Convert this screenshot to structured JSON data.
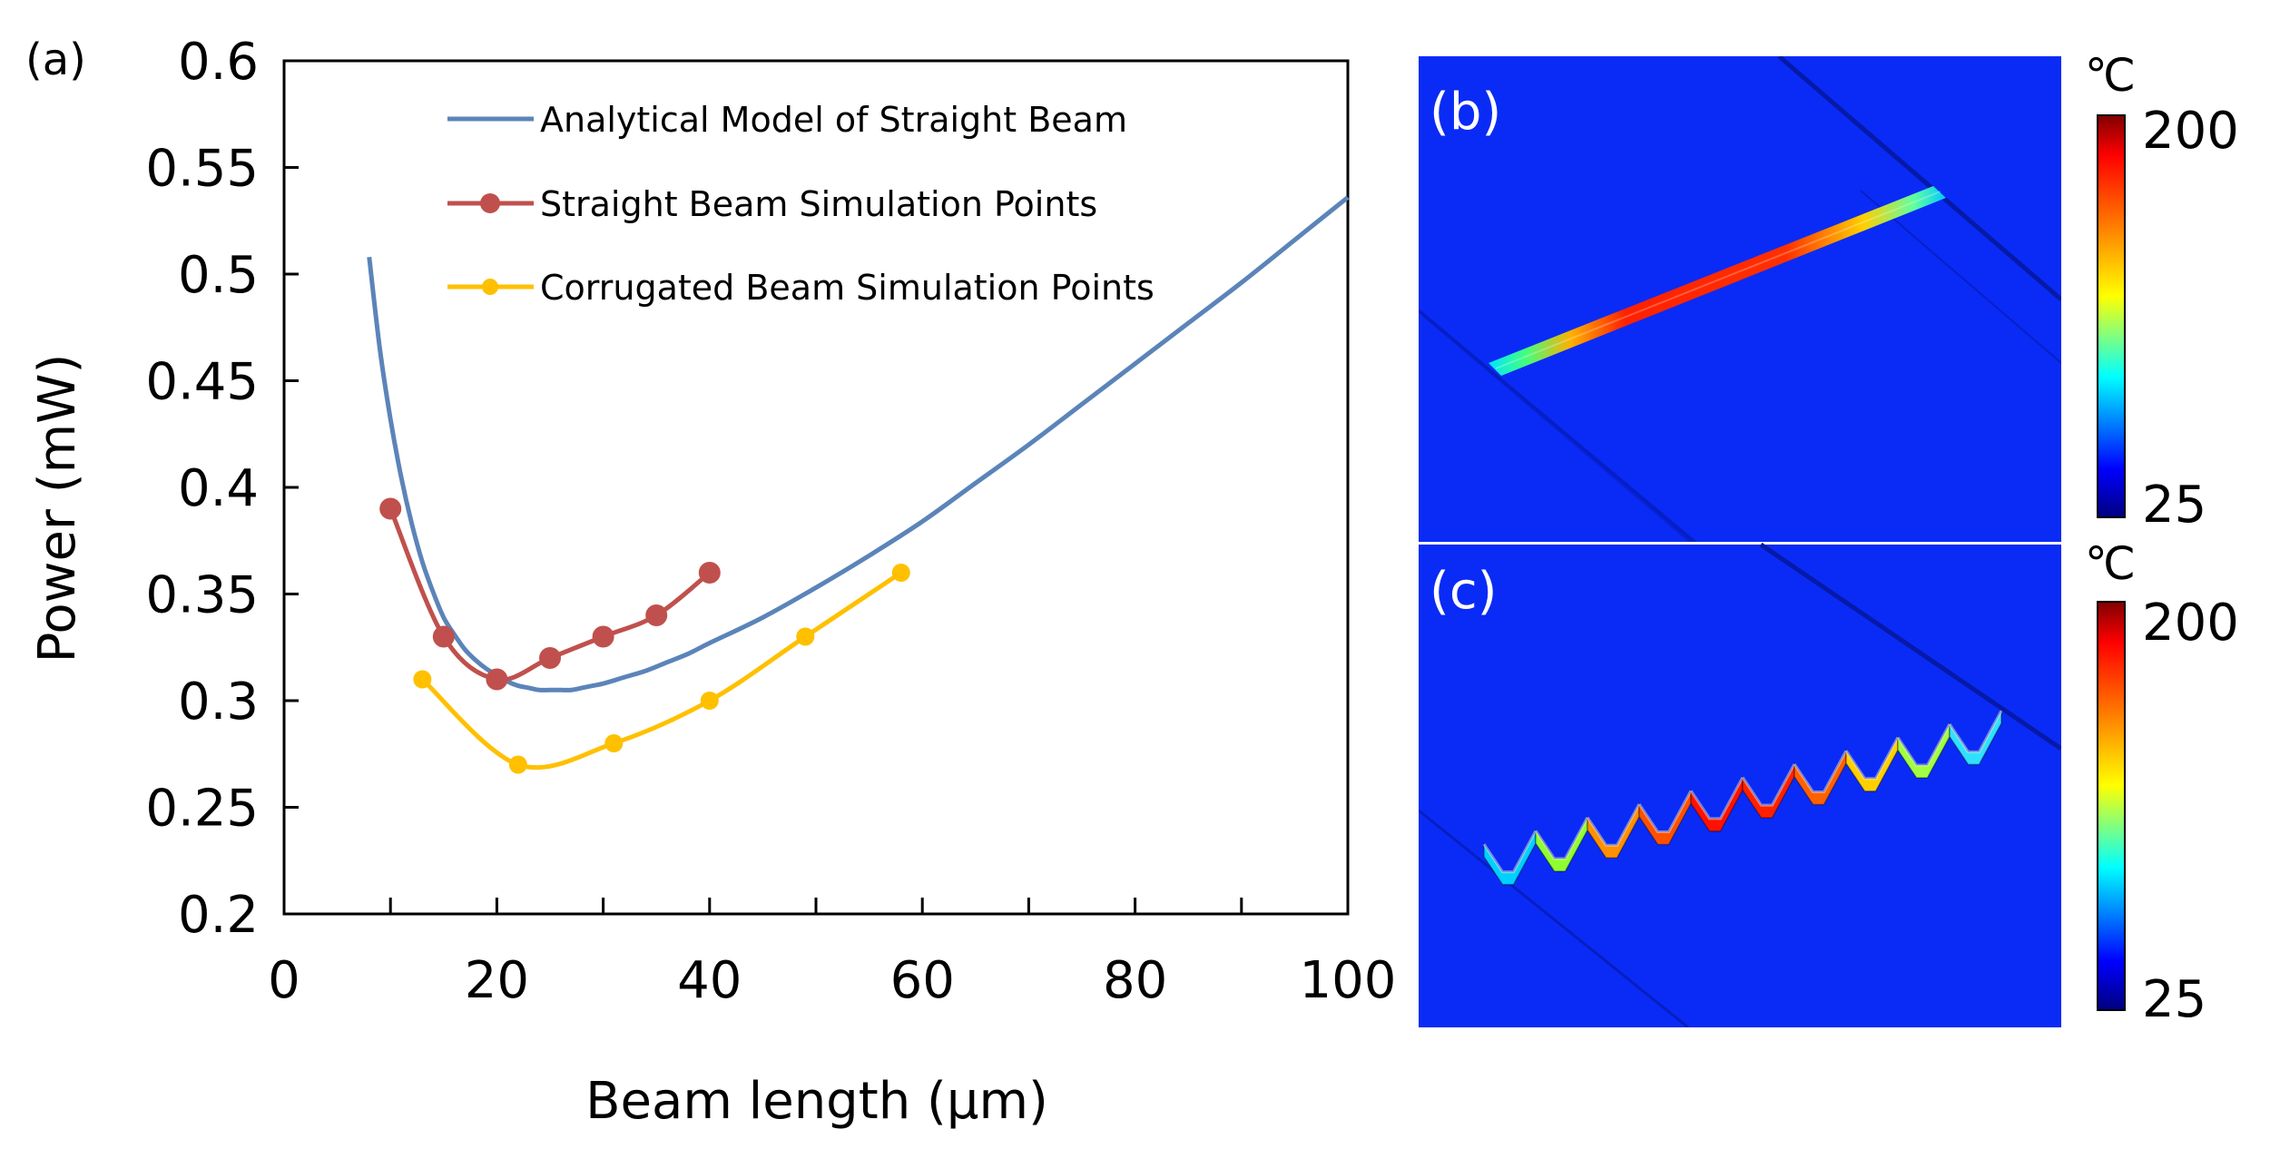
{
  "chart_data": {
    "type": "line",
    "panel_a": {
      "label": "(a)",
      "xlabel": "Beam length (μm)",
      "ylabel": "Power (mW)",
      "xlim": [
        0,
        100
      ],
      "ylim": [
        0.2,
        0.6
      ],
      "xticks": [
        "0",
        "20",
        "40",
        "60",
        "80",
        "100"
      ],
      "yticks": [
        "0.2",
        "0.25",
        "0.3",
        "0.35",
        "0.4",
        "0.45",
        "0.5",
        "0.55",
        "0.6"
      ],
      "legend_position": "top-left",
      "series": [
        {
          "name": "Analytical Model of Straight Beam",
          "kind": "line",
          "color": "#5B84B9",
          "x": [
            8,
            9,
            10,
            11,
            12,
            13,
            14,
            15,
            16,
            17,
            18,
            19,
            20,
            21,
            22,
            23,
            24,
            25,
            26,
            27,
            28,
            29,
            30,
            32,
            34,
            36,
            38,
            40,
            45,
            50,
            55,
            60,
            65,
            70,
            75,
            80,
            85,
            90,
            95,
            100
          ],
          "y": [
            0.508,
            0.465,
            0.432,
            0.405,
            0.383,
            0.365,
            0.351,
            0.339,
            0.331,
            0.324,
            0.319,
            0.315,
            0.312,
            0.309,
            0.307,
            0.306,
            0.305,
            0.305,
            0.305,
            0.305,
            0.306,
            0.307,
            0.308,
            0.311,
            0.314,
            0.318,
            0.322,
            0.327,
            0.339,
            0.353,
            0.368,
            0.384,
            0.402,
            0.42,
            0.439,
            0.458,
            0.477,
            0.496,
            0.516,
            0.536
          ]
        },
        {
          "name": "Straight Beam Simulation Points",
          "kind": "line+markers",
          "color": "#C0504D",
          "x": [
            10,
            15,
            20,
            25,
            30,
            35,
            40
          ],
          "y": [
            0.39,
            0.33,
            0.31,
            0.32,
            0.33,
            0.34,
            0.36
          ]
        },
        {
          "name": "Corrugated Beam Simulation Points",
          "kind": "line+markers",
          "color": "#FFC000",
          "x": [
            13,
            22,
            31,
            40,
            49,
            58
          ],
          "y": [
            0.31,
            0.27,
            0.28,
            0.3,
            0.33,
            0.36
          ]
        }
      ]
    },
    "panel_b": {
      "label": "(b)",
      "colorbar_unit": "℃",
      "colorbar_max": "200",
      "colorbar_min": "25"
    },
    "panel_c": {
      "label": "(c)",
      "colorbar_unit": "℃",
      "colorbar_max": "200",
      "colorbar_min": "25"
    }
  }
}
